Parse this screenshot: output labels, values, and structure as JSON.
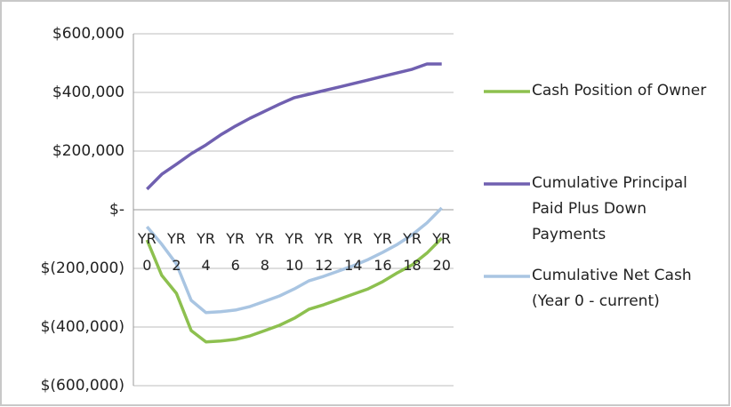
{
  "chart_data": {
    "type": "line",
    "categories": [
      "YR 0",
      null,
      "YR 2",
      null,
      "YR 4",
      null,
      "YR 6",
      null,
      "YR 8",
      null,
      "YR 10",
      null,
      "YR 12",
      null,
      "YR 14",
      null,
      "YR 16",
      null,
      "YR 18",
      null,
      "YR 20"
    ],
    "series": [
      {
        "name": "Cash Position of Owner",
        "color": "#8dc04f",
        "values": [
          -103000,
          -224000,
          -285000,
          -412000,
          -451000,
          -448000,
          -442000,
          -430000,
          -412000,
          -394000,
          -370000,
          -339000,
          -324000,
          -306000,
          -288000,
          -270000,
          -245000,
          -215000,
          -188000,
          -148000,
          -97000
        ]
      },
      {
        "name": "Cumulative Principal Paid Plus Down Payments",
        "color": "#7060b0",
        "values": [
          70000,
          121000,
          155000,
          191000,
          221000,
          255000,
          285000,
          312000,
          336000,
          360000,
          382000,
          394000,
          406000,
          418000,
          430000,
          442000,
          455000,
          467000,
          479000,
          497000,
          497000
        ]
      },
      {
        "name": "Cumulative Net Cash (Year 0 - current)",
        "color": "#a9c5e2",
        "values": [
          -58000,
          -118000,
          -185000,
          -309000,
          -351000,
          -348000,
          -342000,
          -330000,
          -312000,
          -294000,
          -270000,
          -242000,
          -227000,
          -209000,
          -191000,
          -170000,
          -145000,
          -118000,
          -85000,
          -45000,
          6000
        ]
      }
    ],
    "ylim": [
      -600000,
      600000
    ],
    "yticks": [
      {
        "value": -600000,
        "label": "$(600,000)"
      },
      {
        "value": -400000,
        "label": "$(400,000)"
      },
      {
        "value": -200000,
        "label": "$(200,000)"
      },
      {
        "value": 0,
        "label": "$-"
      },
      {
        "value": 200000,
        "label": "$200,000"
      },
      {
        "value": 400000,
        "label": "$400,000"
      },
      {
        "value": 600000,
        "label": "$600,000"
      }
    ],
    "grid": true
  }
}
